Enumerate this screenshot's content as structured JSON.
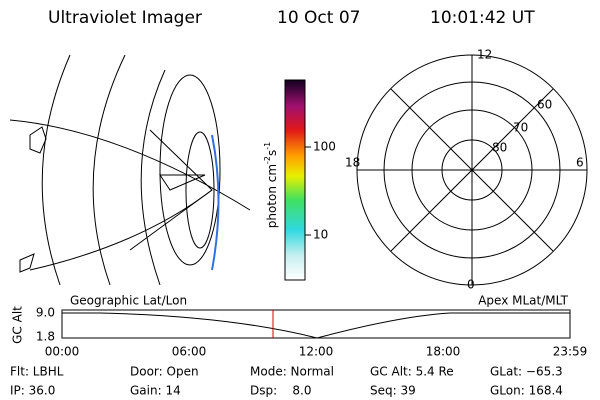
{
  "header": {
    "title": "Ultraviolet Imager",
    "date": "10 Oct 07",
    "time": "10:01:42 UT"
  },
  "colorbar": {
    "label": {
      "unit": "photon cm",
      "exp1": "-2",
      "unit2": "s",
      "exp2": "-1"
    },
    "ticks": [
      "100",
      "10"
    ]
  },
  "polar": {
    "mlt_labels": [
      "12",
      "18",
      "6",
      "0"
    ],
    "lat_labels": [
      "60",
      "70",
      "80"
    ]
  },
  "timeline": {
    "left_label": "Geographic Lat/Lon",
    "right_label": "Apex MLat/MLT",
    "axis_title": "GC Alt",
    "y_labels": [
      "9.0",
      "1.8"
    ],
    "x_labels": [
      "00:00",
      "06:00",
      "12:00",
      "18:00",
      "23:59"
    ]
  },
  "info": [
    [
      "Flt: LBHL",
      "Door: Open",
      "Mode: Normal",
      "GC Alt: 5.4 Re",
      "GLat: −65.3"
    ],
    [
      "IP: 36.0",
      "Gain: 14",
      "Dsp:    8.0",
      "Seq: 39",
      "GLon: 168.4"
    ]
  ]
}
